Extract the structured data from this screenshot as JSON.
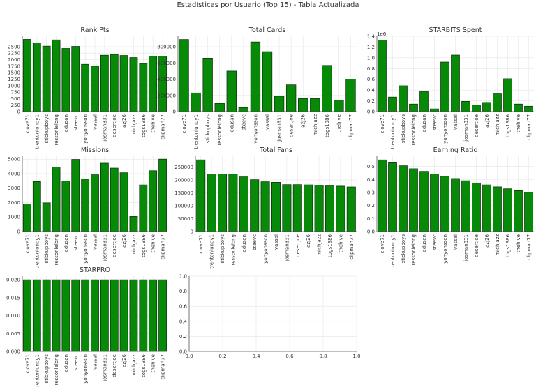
{
  "figure": {
    "title": "Estadísticas por Usuario (Top 15) - Tabla Actualizada"
  },
  "colors": {
    "bar": "#078a07",
    "bar_edge": "#0f2a0f",
    "grid": "#e6e6e6",
    "axis": "#555555",
    "text": "#333333"
  },
  "chart_data": [
    {
      "type": "bar",
      "title": "Rank Pts",
      "categories": [
        "clove71",
        "trentonlundy1",
        "stickupboys",
        "ressonlelong",
        "edusan",
        "steevc",
        "yonyonsson",
        "vassal",
        "josman831",
        "desertjoe",
        "azj26",
        "michjazz",
        "togs1986",
        "thehive",
        "clipman77"
      ],
      "values": [
        2780,
        2650,
        2520,
        2760,
        2430,
        2510,
        1820,
        1750,
        2170,
        2200,
        2160,
        2080,
        1850,
        2130,
        2130
      ],
      "ylim": [
        0,
        2900
      ],
      "yticks": [
        "0",
        "250",
        "500",
        "750",
        "1000",
        "1250",
        "1500",
        "1750",
        "2000",
        "2250",
        "2500"
      ],
      "ytick_values": [
        0,
        250,
        500,
        750,
        1000,
        1250,
        1500,
        1750,
        2000,
        2250,
        2500
      ],
      "grid": true
    },
    {
      "type": "bar",
      "title": "Total Cards",
      "categories": [
        "clove71",
        "trentonlundy1",
        "stickupboys",
        "ressonlelong",
        "edusan",
        "steevc",
        "yonyonsson",
        "vassal",
        "josman831",
        "desertjoe",
        "azj26",
        "michjazz",
        "togs1986",
        "thehive",
        "clipman77"
      ],
      "values": [
        890000,
        230000,
        660000,
        100000,
        500000,
        50000,
        860000,
        740000,
        190000,
        330000,
        160000,
        160000,
        570000,
        140000,
        400000
      ],
      "ylim": [
        0,
        930000
      ],
      "yticks": [
        "0",
        "200000",
        "400000",
        "600000",
        "800000"
      ],
      "ytick_values": [
        0,
        200000,
        400000,
        600000,
        800000
      ],
      "grid": true
    },
    {
      "type": "bar",
      "title": "STARBITS Spent",
      "categories": [
        "clove71",
        "trentonlundy1",
        "stickupboys",
        "ressonlelong",
        "edusan",
        "steevc",
        "yonyonsson",
        "vassal",
        "josman831",
        "desertjoe",
        "azj26",
        "michjazz",
        "togs1986",
        "thehive",
        "clipman77"
      ],
      "values": [
        1.33,
        0.27,
        0.48,
        0.14,
        0.37,
        0.05,
        0.92,
        1.05,
        0.19,
        0.12,
        0.17,
        0.33,
        0.61,
        0.14,
        0.1
      ],
      "ylim": [
        0,
        1.4
      ],
      "yticks": [
        "0.0",
        "0.2",
        "0.4",
        "0.6",
        "0.8",
        "1.0",
        "1.2",
        "1.4"
      ],
      "ytick_values": [
        0,
        0.2,
        0.4,
        0.6,
        0.8,
        1.0,
        1.2,
        1.4
      ],
      "scale_label": "1e6",
      "grid": true
    },
    {
      "type": "bar",
      "title": "Missions",
      "categories": [
        "clove71",
        "trentonlundy1",
        "stickupboys",
        "ressonlelong",
        "edusan",
        "steevc",
        "yonyonsson",
        "vassal",
        "josman831",
        "desertjoe",
        "azj26",
        "michjazz",
        "togs1986",
        "thehive",
        "clipman77"
      ],
      "values": [
        1900,
        3450,
        1980,
        4450,
        3480,
        4980,
        3620,
        3920,
        4720,
        4380,
        4060,
        1040,
        3220,
        4200,
        5000
      ],
      "ylim": [
        0,
        5200
      ],
      "yticks": [
        "0",
        "1000",
        "2000",
        "3000",
        "4000",
        "5000"
      ],
      "ytick_values": [
        0,
        1000,
        2000,
        3000,
        4000,
        5000
      ],
      "grid": true
    },
    {
      "type": "bar",
      "title": "Total Fans",
      "categories": [
        "clove71",
        "trentonlundy1",
        "stickupboys",
        "ressonlelong",
        "edusan",
        "steevc",
        "yonyonsson",
        "vassal",
        "josman831",
        "desertjoe",
        "azj26",
        "michjazz",
        "togs1986",
        "thehive",
        "clipman77"
      ],
      "values": [
        278000,
        223000,
        223000,
        223000,
        212000,
        201000,
        193000,
        191000,
        182000,
        182000,
        181000,
        180000,
        177000,
        176000,
        173000
      ],
      "ylim": [
        0,
        292000
      ],
      "yticks": [
        "0",
        "50000",
        "100000",
        "150000",
        "200000",
        "250000"
      ],
      "ytick_values": [
        0,
        50000,
        100000,
        150000,
        200000,
        250000
      ],
      "grid": true
    },
    {
      "type": "bar",
      "title": "Earning Ratio",
      "categories": [
        "clove71",
        "trentonlundy1",
        "stickupboys",
        "ressonlelong",
        "edusan",
        "steevc",
        "yonyonsson",
        "vassal",
        "josman831",
        "desertjoe",
        "azj26",
        "michjazz",
        "togs1986",
        "thehive",
        "clipman77"
      ],
      "values": [
        0.55,
        0.528,
        0.505,
        0.482,
        0.462,
        0.442,
        0.424,
        0.407,
        0.39,
        0.373,
        0.358,
        0.343,
        0.328,
        0.314,
        0.301
      ],
      "ylim": [
        0,
        0.578
      ],
      "yticks": [
        "0.0",
        "0.1",
        "0.2",
        "0.3",
        "0.4",
        "0.5"
      ],
      "ytick_values": [
        0,
        0.1,
        0.2,
        0.3,
        0.4,
        0.5
      ],
      "grid": true
    },
    {
      "type": "bar",
      "title": "STARPRO",
      "categories": [
        "clove71",
        "trentonlundy1",
        "stickupboys",
        "ressonlelong",
        "edusan",
        "steevc",
        "yonyonsson",
        "vassal",
        "josman831",
        "desertjoe",
        "azj26",
        "michjazz",
        "togs1986",
        "thehive",
        "clipman77"
      ],
      "values": [
        0.02,
        0.02,
        0.02,
        0.02,
        0.02,
        0.02,
        0.02,
        0.02,
        0.02,
        0.02,
        0.02,
        0.02,
        0.02,
        0.02,
        0.02
      ],
      "ylim": [
        0,
        0.021
      ],
      "yticks": [
        "0.000",
        "0.005",
        "0.010",
        "0.015",
        "0.020"
      ],
      "ytick_values": [
        0,
        0.005,
        0.01,
        0.015,
        0.02
      ],
      "grid": true
    },
    {
      "type": "empty",
      "title": "",
      "xlim": [
        0,
        1
      ],
      "ylim": [
        0,
        1
      ],
      "xticks": [
        "0.0",
        "0.2",
        "0.4",
        "0.6",
        "0.8",
        "1.0"
      ],
      "yticks": [
        "0.0",
        "0.2",
        "0.4",
        "0.6",
        "0.8",
        "1.0"
      ],
      "tick_values": [
        0,
        0.2,
        0.4,
        0.6,
        0.8,
        1.0
      ],
      "grid": true
    }
  ]
}
